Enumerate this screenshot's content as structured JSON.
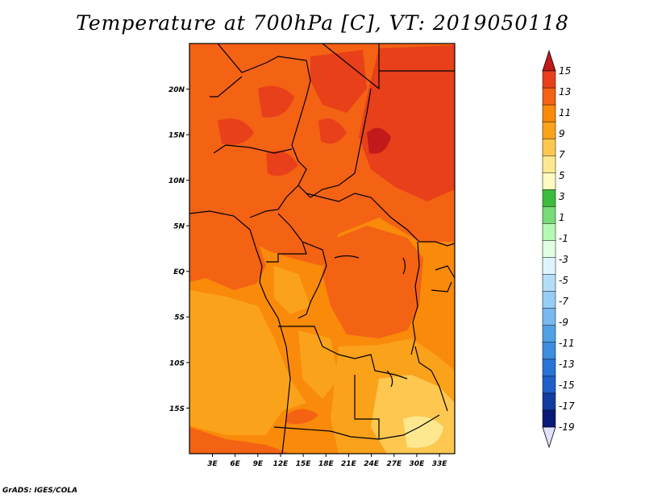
{
  "title": "Temperature at 700hPa [C], VT: 2019050118",
  "credit": "GrADS: IGES/COLA",
  "map": {
    "lon_range": [
      0,
      36
    ],
    "lat_range": [
      -20,
      25
    ],
    "lon_ticks": [
      "3E",
      "6E",
      "9E",
      "12E",
      "15E",
      "18E",
      "21E",
      "24E",
      "27E",
      "30E",
      "33E"
    ],
    "lat_ticks": [
      "20N",
      "15N",
      "10N",
      "5N",
      "EQ",
      "5S",
      "10S",
      "15S"
    ]
  },
  "colorbar": {
    "labels": [
      "15",
      "13",
      "11",
      "9",
      "7",
      "5",
      "3",
      "1",
      "-1",
      "-3",
      "-5",
      "-7",
      "-9",
      "-11",
      "-13",
      "-15",
      "-17",
      "-19"
    ],
    "colors": {
      "c15up": "#c21a1a",
      "c13": "#e8401a",
      "c11": "#f46214",
      "c9": "#f98a0a",
      "c7": "#fba21b",
      "c5": "#fdc750",
      "c3": "#fde890",
      "c1": "#fffac0",
      "cm1": "#3cbc3c",
      "cm3": "#78dc78",
      "cm5": "#b4fab4",
      "cm7": "#e1ffe1",
      "cm9": "#e0f4ff",
      "cm11": "#b4def8",
      "cm13": "#96cdf5",
      "cm15": "#78b9f0",
      "cm17": "#50a0e6",
      "cm19": "#3c8ce0",
      "cm21": "#2873d7",
      "cm23": "#1e5fc8",
      "cm25": "#143ca0",
      "cmlow": "#0a1978",
      "cbottom": "#e0e0ff"
    }
  },
  "chart_data": {
    "type": "heatmap",
    "title": "Temperature at 700hPa [C], VT: 2019050118",
    "variable": "Temperature at 700hPa",
    "units": "C",
    "valid_time": "2019050118",
    "x_ticks": [
      "3E",
      "6E",
      "9E",
      "12E",
      "15E",
      "18E",
      "21E",
      "24E",
      "27E",
      "30E",
      "33E"
    ],
    "y_ticks": [
      "20N",
      "15N",
      "10N",
      "5N",
      "EQ",
      "5S",
      "10S",
      "15S"
    ],
    "colorbar_levels": [
      15,
      13,
      11,
      9,
      7,
      5,
      3,
      1,
      -1,
      -3,
      -5,
      -7,
      -9,
      -11,
      -13,
      -15,
      -17,
      -19
    ],
    "observed_range_c": [
      5,
      15
    ]
  }
}
